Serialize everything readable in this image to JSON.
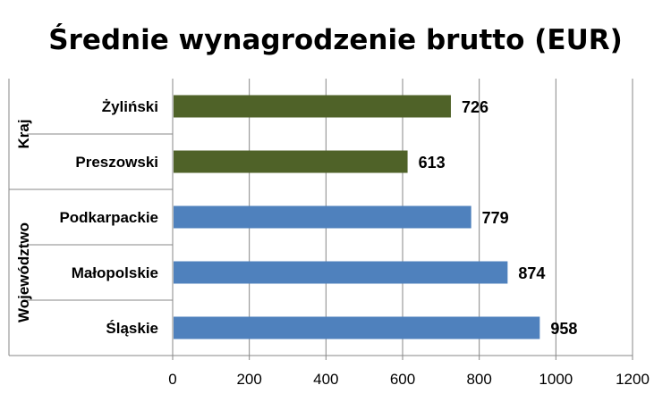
{
  "chart_data": {
    "type": "bar",
    "orientation": "horizontal",
    "title": "Średnie wynagrodzenie brutto (EUR)",
    "xlabel": "",
    "ylabel": "",
    "xlim": [
      0,
      1200
    ],
    "ticks": [
      "0",
      "200",
      "400",
      "600",
      "800",
      "1000",
      "1200"
    ],
    "grid": true,
    "legend": "none",
    "groups": [
      {
        "name": "Kraj",
        "color": "#4f6228",
        "categories": [
          "Żyliński",
          "Preszowski"
        ],
        "values": [
          726,
          613
        ]
      },
      {
        "name": "Województwo",
        "color": "#4f81bd",
        "categories": [
          "Podkarpackie",
          "Małopolskie",
          "Śląskie"
        ],
        "values": [
          779,
          874,
          958
        ]
      }
    ]
  }
}
